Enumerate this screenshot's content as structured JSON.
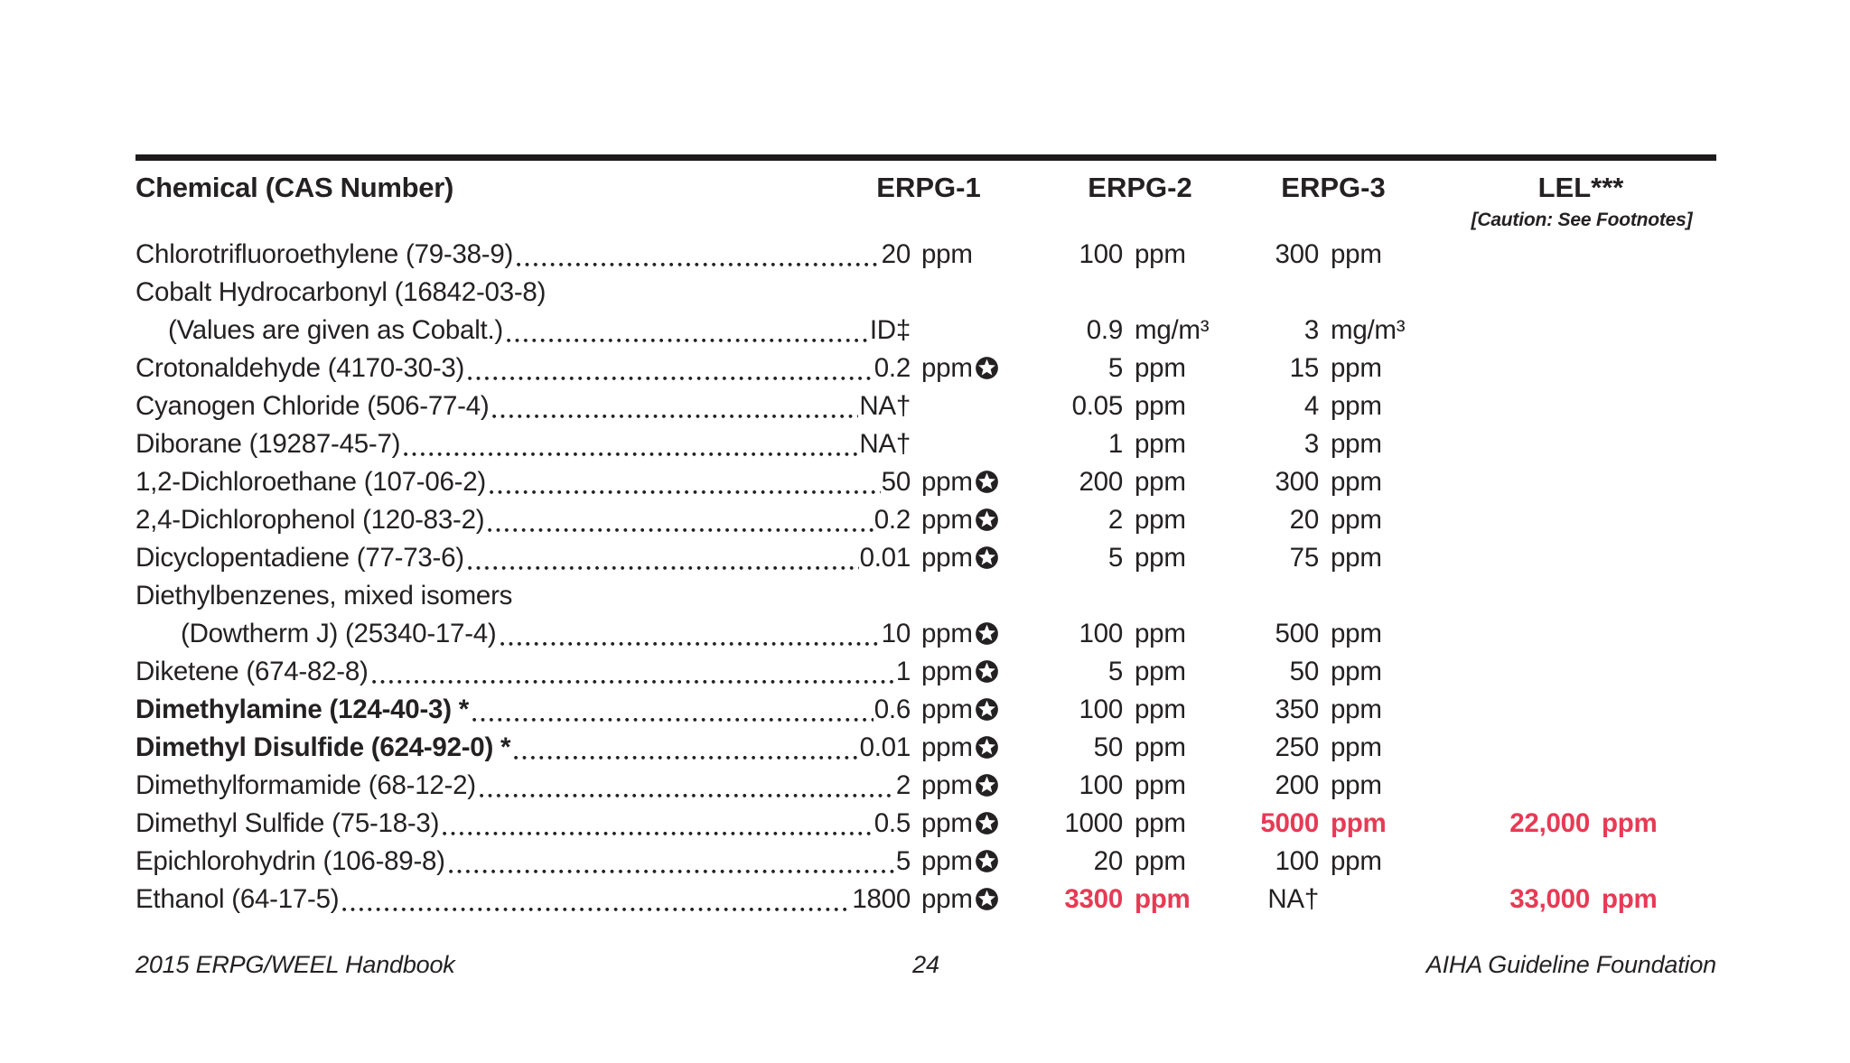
{
  "header": {
    "chemical": "Chemical (CAS Number)",
    "erpg1": "ERPG-1",
    "erpg2": "ERPG-2",
    "erpg3": "ERPG-3",
    "lel": "LEL***",
    "lel_note": "[Caution: See Footnotes]"
  },
  "colors": {
    "text": "#242122",
    "accent_red": "#e73a55",
    "rule": "#1d1b1c"
  },
  "symbols": {
    "star_meaning": "circled-white-star-footnote-marker",
    "dagger": "†",
    "double_dagger": "‡"
  },
  "rows": [
    {
      "name": "Chlorotrifluoroethylene (79-38-9)",
      "leader": true,
      "erpg1": {
        "value": "20",
        "unit": "ppm"
      },
      "erpg2": {
        "value": "100",
        "unit": "ppm"
      },
      "erpg3": {
        "value": "300",
        "unit": "ppm"
      }
    },
    {
      "name": "Cobalt Hydrocarbonyl (16842-03-8)"
    },
    {
      "name": "(Values are given as Cobalt.)",
      "indent": 1,
      "leader": true,
      "erpg1": {
        "value": "ID‡"
      },
      "erpg2": {
        "value": "0.9",
        "unit": "mg/m³"
      },
      "erpg3": {
        "value": "3",
        "unit": "mg/m³"
      }
    },
    {
      "name": "Crotonaldehyde (4170-30-3)",
      "leader": true,
      "erpg1": {
        "value": "0.2",
        "unit": "ppm",
        "star": true
      },
      "erpg2": {
        "value": "5",
        "unit": "ppm"
      },
      "erpg3": {
        "value": "15",
        "unit": "ppm"
      }
    },
    {
      "name": "Cyanogen Chloride (506-77-4)",
      "leader": true,
      "erpg1": {
        "value": "NA†"
      },
      "erpg2": {
        "value": "0.05",
        "unit": "ppm"
      },
      "erpg3": {
        "value": "4",
        "unit": "ppm"
      }
    },
    {
      "name": "Diborane (19287-45-7)",
      "leader": true,
      "erpg1": {
        "value": "NA†"
      },
      "erpg2": {
        "value": "1",
        "unit": "ppm"
      },
      "erpg3": {
        "value": "3",
        "unit": "ppm"
      }
    },
    {
      "name": "1,2-Dichloroethane (107-06-2)",
      "leader": true,
      "erpg1": {
        "value": "50",
        "unit": "ppm",
        "star": true
      },
      "erpg2": {
        "value": "200",
        "unit": "ppm"
      },
      "erpg3": {
        "value": "300",
        "unit": "ppm"
      }
    },
    {
      "name": "2,4-Dichlorophenol (120-83-2)",
      "leader": true,
      "erpg1": {
        "value": "0.2",
        "unit": "ppm",
        "star": true
      },
      "erpg2": {
        "value": "2",
        "unit": "ppm"
      },
      "erpg3": {
        "value": "20",
        "unit": "ppm"
      }
    },
    {
      "name": "Dicyclopentadiene (77-73-6)",
      "leader": true,
      "erpg1": {
        "value": "0.01",
        "unit": "ppm",
        "star": true
      },
      "erpg2": {
        "value": "5",
        "unit": "ppm"
      },
      "erpg3": {
        "value": "75",
        "unit": "ppm"
      }
    },
    {
      "name": "Diethylbenzenes, mixed isomers"
    },
    {
      "name": "(Dowtherm J) (25340-17-4)",
      "indent": 2,
      "leader": true,
      "erpg1": {
        "value": "10",
        "unit": "ppm",
        "star": true
      },
      "erpg2": {
        "value": "100",
        "unit": "ppm"
      },
      "erpg3": {
        "value": "500",
        "unit": "ppm"
      }
    },
    {
      "name": "Diketene (674-82-8)",
      "leader": true,
      "erpg1": {
        "value": "1",
        "unit": "ppm",
        "star": true
      },
      "erpg2": {
        "value": "5",
        "unit": "ppm"
      },
      "erpg3": {
        "value": "50",
        "unit": "ppm"
      }
    },
    {
      "name": "Dimethylamine (124-40-3) *",
      "bold": true,
      "leader": true,
      "erpg1": {
        "value": "0.6",
        "unit": "ppm",
        "star": true
      },
      "erpg2": {
        "value": "100",
        "unit": "ppm"
      },
      "erpg3": {
        "value": "350",
        "unit": "ppm"
      }
    },
    {
      "name": "Dimethyl Disulfide (624-92-0) *",
      "bold": true,
      "leader": true,
      "erpg1": {
        "value": "0.01",
        "unit": "ppm",
        "star": true
      },
      "erpg2": {
        "value": "50",
        "unit": "ppm"
      },
      "erpg3": {
        "value": "250",
        "unit": "ppm"
      }
    },
    {
      "name": "Dimethylformamide (68-12-2)",
      "leader": true,
      "erpg1": {
        "value": "2",
        "unit": "ppm",
        "star": true
      },
      "erpg2": {
        "value": "100",
        "unit": "ppm"
      },
      "erpg3": {
        "value": "200",
        "unit": "ppm"
      }
    },
    {
      "name": "Dimethyl Sulfide (75-18-3)",
      "leader": true,
      "erpg1": {
        "value": "0.5",
        "unit": "ppm",
        "star": true
      },
      "erpg2": {
        "value": "1000",
        "unit": "ppm"
      },
      "erpg3": {
        "value": "5000",
        "unit": "ppm",
        "red": true
      },
      "lel": {
        "value": "22,000",
        "unit": "ppm",
        "red": true
      }
    },
    {
      "name": "Epichlorohydrin (106-89-8)",
      "leader": true,
      "erpg1": {
        "value": "5",
        "unit": "ppm",
        "star": true
      },
      "erpg2": {
        "value": "20",
        "unit": "ppm"
      },
      "erpg3": {
        "value": "100",
        "unit": "ppm"
      }
    },
    {
      "name": "Ethanol (64-17-5)",
      "leader": true,
      "erpg1": {
        "value": "1800",
        "unit": "ppm",
        "star": true
      },
      "erpg2": {
        "value": "3300",
        "unit": "ppm",
        "red": true
      },
      "erpg3": {
        "value": "NA†"
      },
      "lel": {
        "value": "33,000",
        "unit": "ppm",
        "red": true
      }
    }
  ],
  "footer": {
    "left": "2015 ERPG/WEEL Handbook",
    "page": "24",
    "right": "AIHA Guideline Foundation"
  }
}
